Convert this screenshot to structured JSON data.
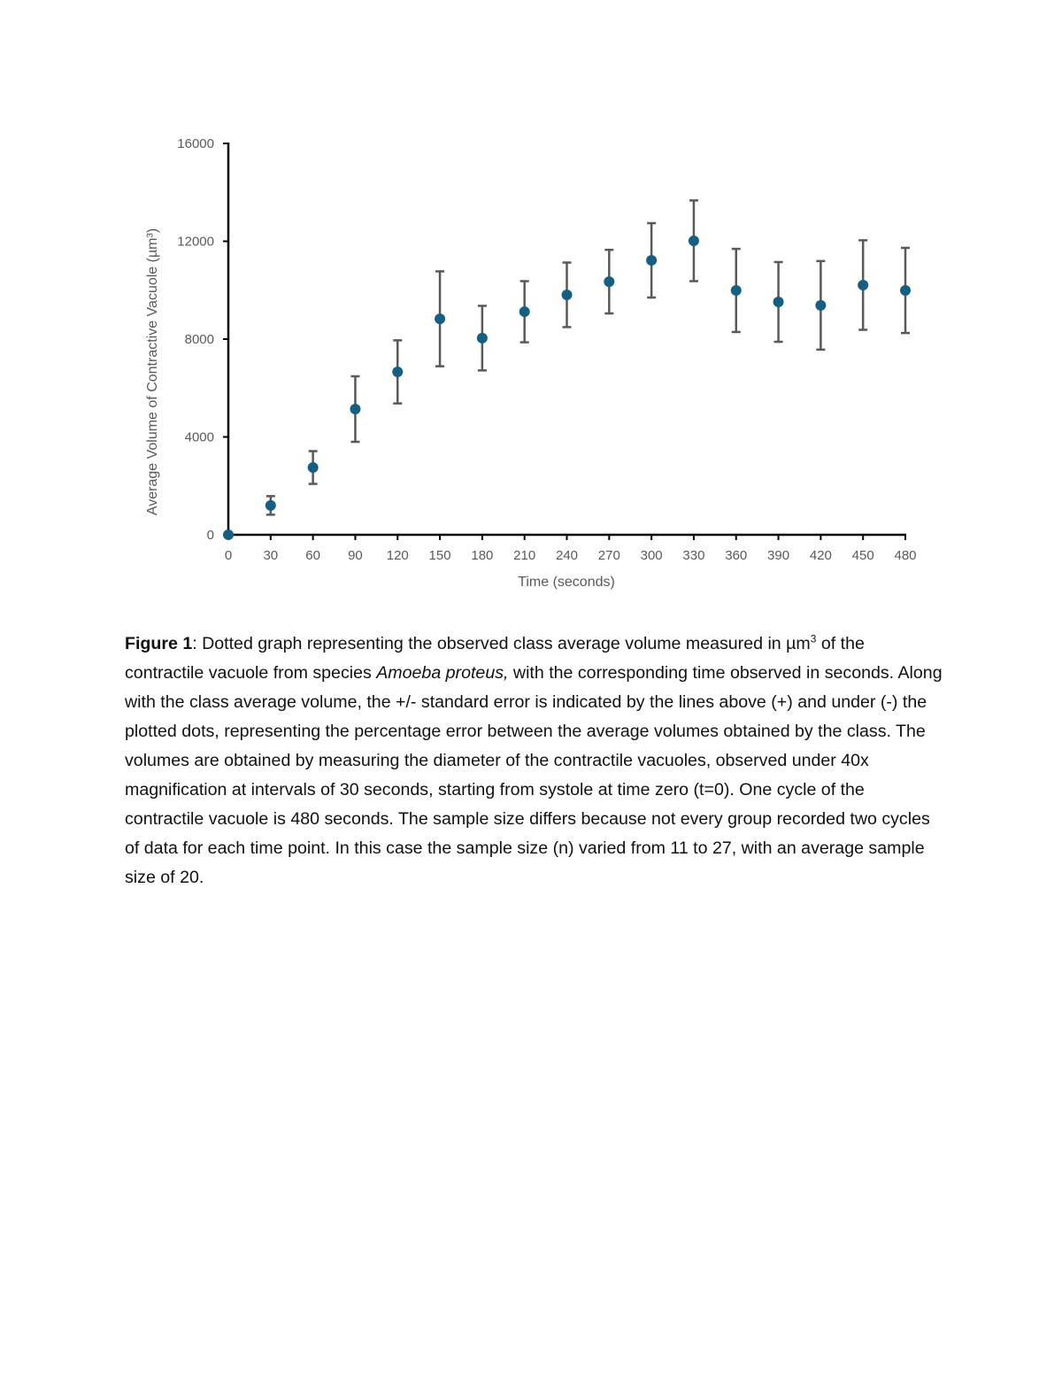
{
  "chart_data": {
    "type": "scatter",
    "title": "",
    "xlabel": "Time (seconds)",
    "ylabel": "Average Volume of Contractive Vacuole (µm³)",
    "xlim": [
      0,
      480
    ],
    "ylim": [
      0,
      16000
    ],
    "x_ticks": [
      0,
      30,
      60,
      90,
      120,
      150,
      180,
      210,
      240,
      270,
      300,
      330,
      360,
      390,
      420,
      450,
      480
    ],
    "y_ticks": [
      0,
      4000,
      8000,
      12000,
      16000
    ],
    "grid": false,
    "legend": "none",
    "marker_color": "#156082",
    "errorbar_color": "#595959",
    "x": [
      0,
      30,
      60,
      90,
      120,
      150,
      180,
      210,
      240,
      270,
      300,
      330,
      360,
      390,
      420,
      450,
      480
    ],
    "y": [
      0,
      1200,
      2750,
      5140,
      6660,
      8830,
      8040,
      9120,
      9810,
      10350,
      11220,
      12020,
      9990,
      9520,
      9380,
      10210,
      9990
    ],
    "error": [
      0,
      380,
      670,
      1340,
      1290,
      1940,
      1320,
      1250,
      1320,
      1300,
      1520,
      1650,
      1700,
      1630,
      1810,
      1830,
      1740
    ]
  },
  "caption": {
    "label": "Figure 1",
    "part1": ": Dotted graph representing the observed class average volume measured in µm",
    "sup": "3",
    "part2": " of the contractile vacuole from species ",
    "species": "Amoeba proteus,",
    "part3": " with the corresponding time observed in seconds. Along with the class average volume, the +/- standard error is indicated by the lines above (+) and under (-) the plotted dots, representing the percentage error between the average volumes obtained by the class. The volumes are obtained by measuring the diameter of the contractile vacuoles, observed under 40x magnification at intervals of 30 seconds, starting from systole at time zero (t=0). One cycle of the contractile vacuole is 480 seconds. The sample size differs because not every group recorded two cycles of data for each time point. In this case the sample size (n) varied from 11 to 27, with an average sample size of 20."
  }
}
